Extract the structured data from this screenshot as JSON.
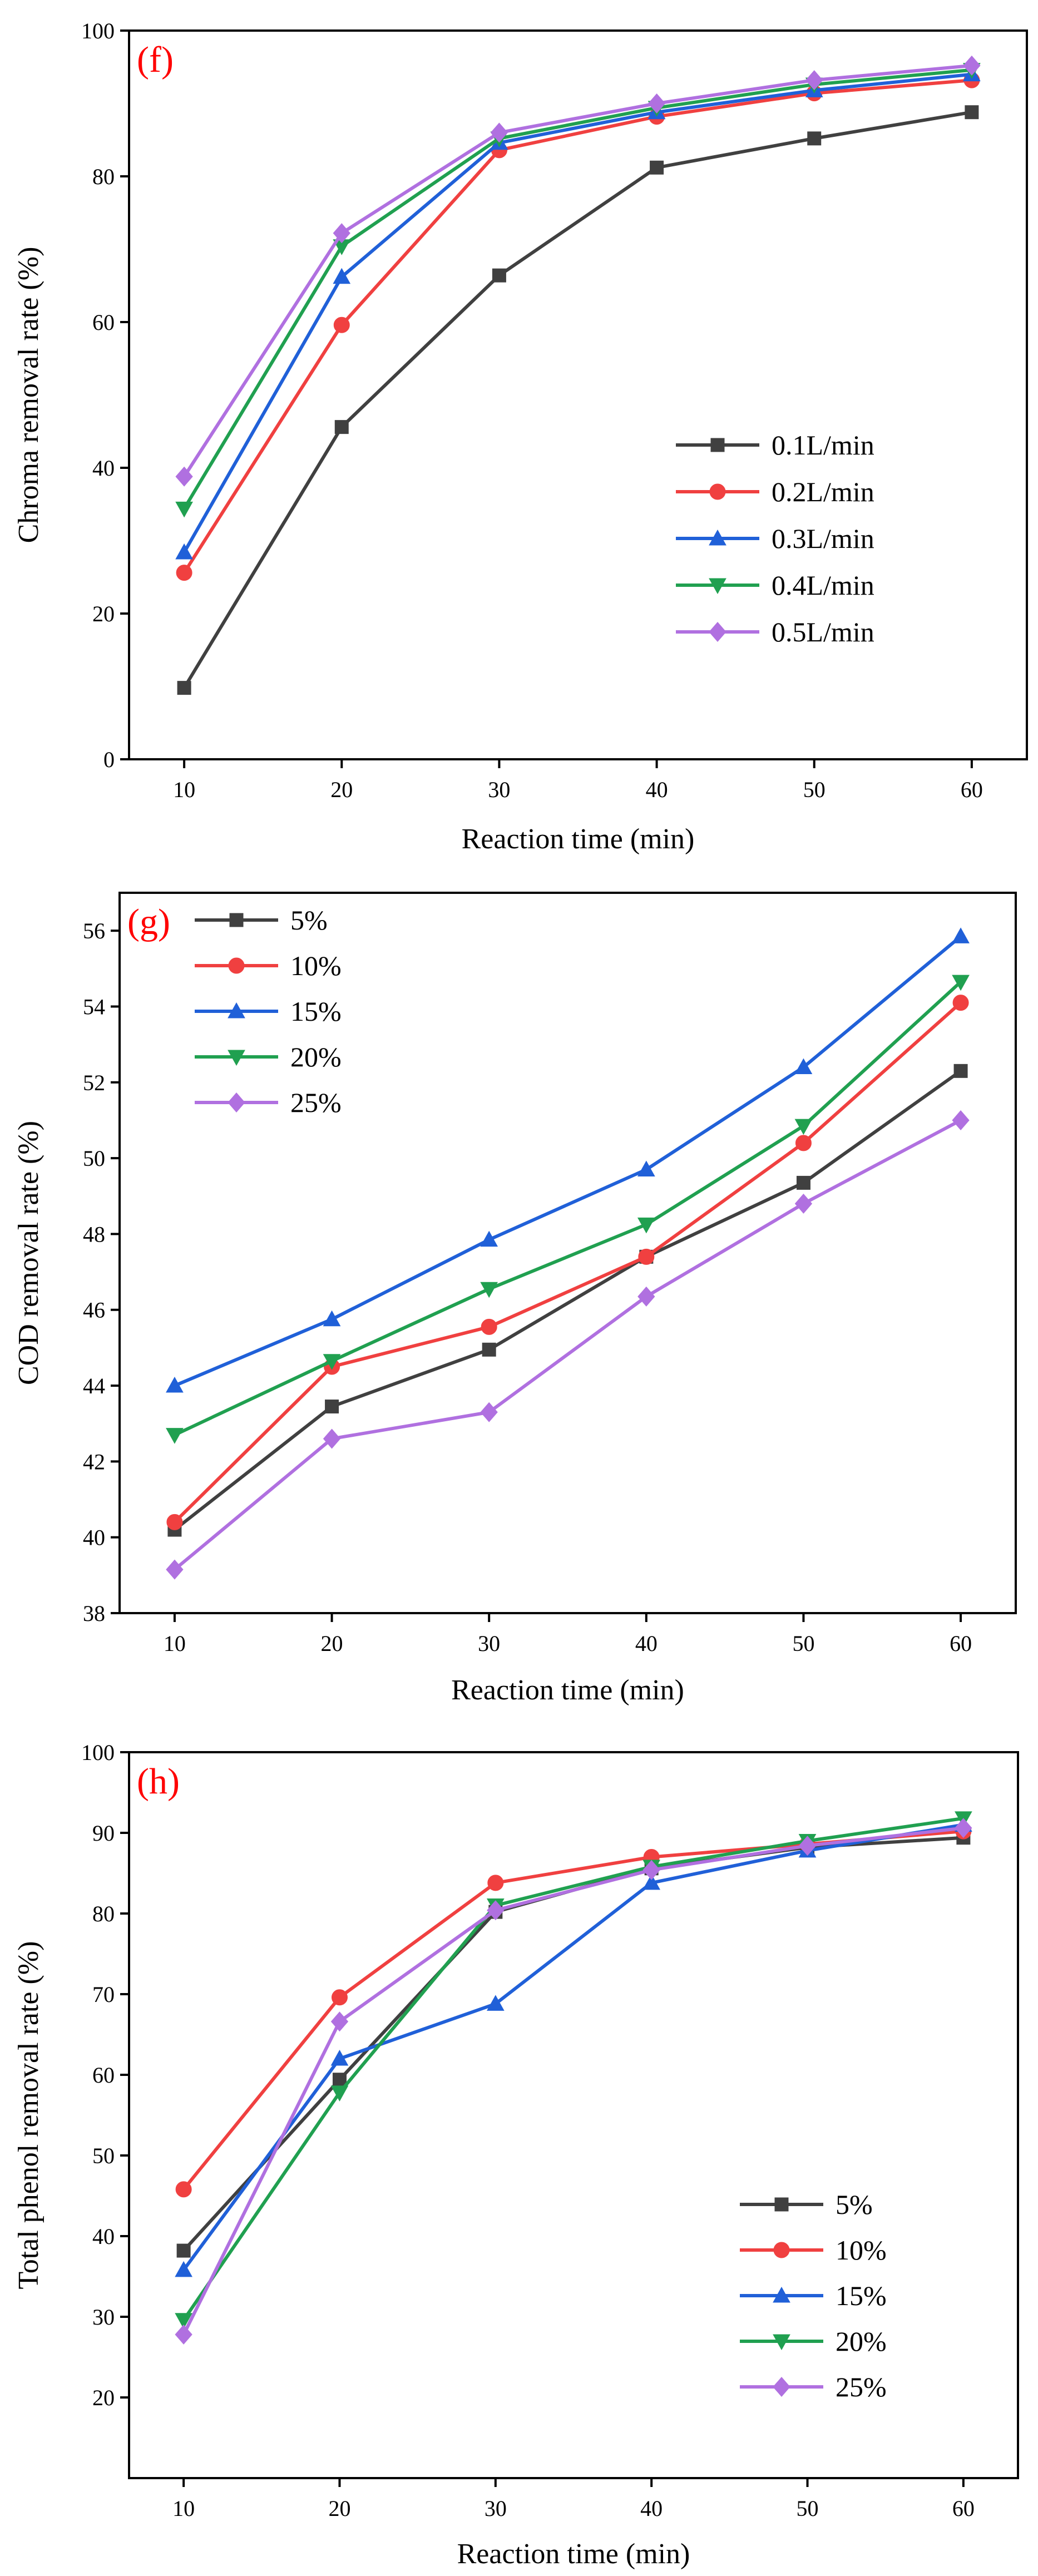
{
  "chart_data": [
    {
      "type": "line",
      "panel_label": "(f)",
      "xlabel": "Reaction time (min)",
      "ylabel": "Chroma removal rate (%)",
      "x": [
        10,
        20,
        30,
        40,
        50,
        60
      ],
      "xticks": [
        10,
        20,
        30,
        40,
        50,
        60
      ],
      "ylim": [
        0,
        100
      ],
      "yticks": [
        0,
        20,
        40,
        60,
        80,
        100
      ],
      "legend_position": "center-right",
      "series": [
        {
          "name": "0.1L/min",
          "color": "#404040",
          "marker": "square",
          "values": [
            9.8,
            45.6,
            66.4,
            81.2,
            85.2,
            88.8
          ]
        },
        {
          "name": "0.2L/min",
          "color": "#f04040",
          "marker": "circle",
          "values": [
            25.6,
            59.6,
            83.6,
            88.2,
            91.4,
            93.2
          ]
        },
        {
          "name": "0.3L/min",
          "color": "#2060d8",
          "marker": "triangle-up",
          "values": [
            28.4,
            66.2,
            84.6,
            88.8,
            91.8,
            94.0
          ]
        },
        {
          "name": "0.4L/min",
          "color": "#20a050",
          "marker": "triangle-down",
          "values": [
            34.4,
            70.4,
            85.2,
            89.4,
            92.6,
            94.6
          ]
        },
        {
          "name": "0.5L/min",
          "color": "#b070e0",
          "marker": "diamond",
          "values": [
            38.8,
            72.2,
            86.0,
            90.0,
            93.2,
            95.2
          ]
        }
      ]
    },
    {
      "type": "line",
      "panel_label": "(g)",
      "xlabel": "Reaction time (min)",
      "ylabel": "COD removal rate (%)",
      "x": [
        10,
        20,
        30,
        40,
        50,
        60
      ],
      "xticks": [
        10,
        20,
        30,
        40,
        50,
        60
      ],
      "ylim": [
        38,
        57
      ],
      "yticks": [
        38,
        40,
        42,
        44,
        46,
        48,
        50,
        52,
        54,
        56
      ],
      "legend_position": "top-left",
      "series": [
        {
          "name": "5%",
          "color": "#404040",
          "marker": "square",
          "values": [
            40.2,
            43.45,
            44.95,
            47.4,
            49.35,
            52.3
          ]
        },
        {
          "name": "10%",
          "color": "#f04040",
          "marker": "circle",
          "values": [
            40.4,
            44.5,
            45.55,
            47.4,
            50.4,
            54.1
          ]
        },
        {
          "name": "15%",
          "color": "#2060d8",
          "marker": "triangle-up",
          "values": [
            44.0,
            45.75,
            47.85,
            49.7,
            52.4,
            55.85
          ]
        },
        {
          "name": "20%",
          "color": "#20a050",
          "marker": "triangle-down",
          "values": [
            42.7,
            44.65,
            46.55,
            48.25,
            50.85,
            54.65
          ]
        },
        {
          "name": "25%",
          "color": "#b070e0",
          "marker": "diamond",
          "values": [
            39.15,
            42.6,
            43.3,
            46.35,
            48.8,
            51.0
          ]
        }
      ]
    },
    {
      "type": "line",
      "panel_label": "(h)",
      "xlabel": "Reaction time (min)",
      "ylabel": "Total phenol removal rate (%)",
      "x": [
        10,
        20,
        30,
        40,
        50,
        60
      ],
      "xticks": [
        10,
        20,
        30,
        40,
        50,
        60
      ],
      "ylim": [
        10,
        100
      ],
      "yticks": [
        20,
        30,
        40,
        50,
        60,
        70,
        80,
        90,
        100
      ],
      "legend_position": "bottom-right",
      "series": [
        {
          "name": "5%",
          "color": "#404040",
          "marker": "square",
          "values": [
            38.2,
            59.4,
            80.2,
            85.6,
            88.2,
            89.4
          ]
        },
        {
          "name": "10%",
          "color": "#f04040",
          "marker": "circle",
          "values": [
            45.8,
            69.6,
            83.8,
            87.0,
            88.6,
            90.2
          ]
        },
        {
          "name": "15%",
          "color": "#2060d8",
          "marker": "triangle-up",
          "values": [
            35.8,
            62.0,
            68.8,
            83.8,
            87.8,
            91.0
          ]
        },
        {
          "name": "20%",
          "color": "#20a050",
          "marker": "triangle-down",
          "values": [
            29.6,
            57.8,
            81.0,
            85.8,
            89.0,
            91.8
          ]
        },
        {
          "name": "25%",
          "color": "#b070e0",
          "marker": "diamond",
          "values": [
            27.8,
            66.6,
            80.4,
            85.4,
            88.4,
            90.6
          ]
        }
      ]
    }
  ]
}
